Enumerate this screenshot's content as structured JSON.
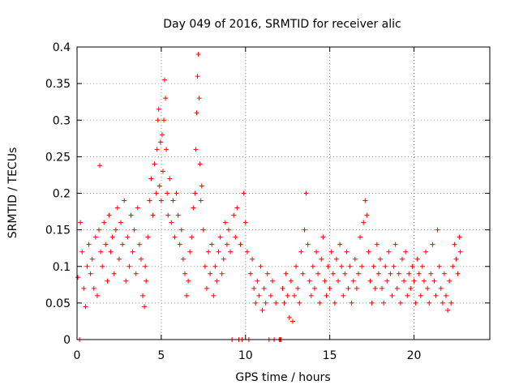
{
  "chart_data": {
    "type": "scatter",
    "title": "Day 049 of 2016, SRMTID for receiver alic",
    "xlabel": "GPS time / hours",
    "ylabel": "SRMTID / TECUs",
    "xlim": [
      0,
      24.5
    ],
    "ylim": [
      0,
      0.4
    ],
    "x_ticks": [
      0,
      5,
      10,
      15,
      20
    ],
    "x_tick_labels": [
      "0",
      "5",
      "10",
      "15",
      "20"
    ],
    "y_ticks": [
      0,
      0.05,
      0.1,
      0.15,
      0.2,
      0.25,
      0.3,
      0.35,
      0.4
    ],
    "y_tick_labels": [
      "0",
      "0.05",
      "0.1",
      "0.15",
      "0.2",
      "0.25",
      "0.3",
      "0.35",
      "0.4"
    ],
    "grid": true,
    "marker": "+",
    "marker_color": "#ff0000",
    "series": [
      {
        "name": "SRMTID",
        "points": [
          [
            0.05,
            0.085
          ],
          [
            0.15,
            0.0
          ],
          [
            0.2,
            0.16
          ],
          [
            0.3,
            0.12
          ],
          [
            0.4,
            0.07
          ],
          [
            0.5,
            0.045
          ],
          [
            0.6,
            0.1
          ],
          [
            0.7,
            0.13
          ],
          [
            0.8,
            0.09
          ],
          [
            0.9,
            0.11
          ],
          [
            1.0,
            0.07
          ],
          [
            1.1,
            0.14
          ],
          [
            1.2,
            0.06
          ],
          [
            1.3,
            0.15
          ],
          [
            1.35,
            0.238
          ],
          [
            1.4,
            0.12
          ],
          [
            1.5,
            0.1
          ],
          [
            1.6,
            0.16
          ],
          [
            1.7,
            0.13
          ],
          [
            1.8,
            0.08
          ],
          [
            1.9,
            0.17
          ],
          [
            2.0,
            0.12
          ],
          [
            2.1,
            0.14
          ],
          [
            2.2,
            0.09
          ],
          [
            2.3,
            0.15
          ],
          [
            2.4,
            0.18
          ],
          [
            2.5,
            0.11
          ],
          [
            2.6,
            0.16
          ],
          [
            2.7,
            0.13
          ],
          [
            2.8,
            0.19
          ],
          [
            2.9,
            0.08
          ],
          [
            3.0,
            0.14
          ],
          [
            3.1,
            0.1
          ],
          [
            3.2,
            0.17
          ],
          [
            3.3,
            0.12
          ],
          [
            3.4,
            0.15
          ],
          [
            3.5,
            0.09
          ],
          [
            3.6,
            0.18
          ],
          [
            3.7,
            0.13
          ],
          [
            3.8,
            0.11
          ],
          [
            3.9,
            0.06
          ],
          [
            4.0,
            0.045
          ],
          [
            4.05,
            0.1
          ],
          [
            4.1,
            0.08
          ],
          [
            4.2,
            0.14
          ],
          [
            4.3,
            0.19
          ],
          [
            4.4,
            0.22
          ],
          [
            4.5,
            0.17
          ],
          [
            4.6,
            0.24
          ],
          [
            4.7,
            0.2
          ],
          [
            4.75,
            0.26
          ],
          [
            4.8,
            0.3
          ],
          [
            4.85,
            0.315
          ],
          [
            4.9,
            0.21
          ],
          [
            4.95,
            0.27
          ],
          [
            5.0,
            0.19
          ],
          [
            5.05,
            0.28
          ],
          [
            5.1,
            0.23
          ],
          [
            5.15,
            0.3
          ],
          [
            5.2,
            0.355
          ],
          [
            5.25,
            0.33
          ],
          [
            5.3,
            0.26
          ],
          [
            5.35,
            0.2
          ],
          [
            5.4,
            0.17
          ],
          [
            5.5,
            0.22
          ],
          [
            5.6,
            0.16
          ],
          [
            5.7,
            0.19
          ],
          [
            5.8,
            0.14
          ],
          [
            5.9,
            0.2
          ],
          [
            6.0,
            0.17
          ],
          [
            6.1,
            0.13
          ],
          [
            6.2,
            0.15
          ],
          [
            6.3,
            0.11
          ],
          [
            6.4,
            0.09
          ],
          [
            6.5,
            0.06
          ],
          [
            6.6,
            0.08
          ],
          [
            6.7,
            0.12
          ],
          [
            6.8,
            0.14
          ],
          [
            6.9,
            0.18
          ],
          [
            7.0,
            0.2
          ],
          [
            7.05,
            0.26
          ],
          [
            7.1,
            0.31
          ],
          [
            7.15,
            0.36
          ],
          [
            7.2,
            0.39
          ],
          [
            7.25,
            0.33
          ],
          [
            7.3,
            0.24
          ],
          [
            7.35,
            0.19
          ],
          [
            7.4,
            0.21
          ],
          [
            7.5,
            0.15
          ],
          [
            7.6,
            0.1
          ],
          [
            7.7,
            0.07
          ],
          [
            7.8,
            0.12
          ],
          [
            7.9,
            0.09
          ],
          [
            8.0,
            0.13
          ],
          [
            8.1,
            0.06
          ],
          [
            8.2,
            0.1
          ],
          [
            8.3,
            0.08
          ],
          [
            8.4,
            0.12
          ],
          [
            8.5,
            0.14
          ],
          [
            8.6,
            0.09
          ],
          [
            8.7,
            0.11
          ],
          [
            8.8,
            0.16
          ],
          [
            8.9,
            0.13
          ],
          [
            9.0,
            0.15
          ],
          [
            9.1,
            0.12
          ],
          [
            9.2,
            0.0
          ],
          [
            9.3,
            0.17
          ],
          [
            9.4,
            0.14
          ],
          [
            9.5,
            0.18
          ],
          [
            9.6,
            0.0
          ],
          [
            9.7,
            0.13
          ],
          [
            9.8,
            0.0
          ],
          [
            9.9,
            0.2
          ],
          [
            10.0,
            0.16
          ],
          [
            10.1,
            0.12
          ],
          [
            10.2,
            0.0
          ],
          [
            10.3,
            0.09
          ],
          [
            10.4,
            0.11
          ],
          [
            10.5,
            0.07
          ],
          [
            10.6,
            0.05
          ],
          [
            10.7,
            0.08
          ],
          [
            10.8,
            0.06
          ],
          [
            10.9,
            0.1
          ],
          [
            11.0,
            0.04
          ],
          [
            11.1,
            0.07
          ],
          [
            11.2,
            0.05
          ],
          [
            11.3,
            0.09
          ],
          [
            11.4,
            0.0
          ],
          [
            11.5,
            0.06
          ],
          [
            11.6,
            0.08
          ],
          [
            11.7,
            0.0
          ],
          [
            11.8,
            0.05
          ],
          [
            12.0,
            0.0
          ],
          [
            12.05,
            0.0
          ],
          [
            12.1,
            0.0
          ],
          [
            12.2,
            0.07
          ],
          [
            12.3,
            0.05
          ],
          [
            12.4,
            0.09
          ],
          [
            12.5,
            0.06
          ],
          [
            12.6,
            0.03
          ],
          [
            12.7,
            0.08
          ],
          [
            12.8,
            0.025
          ],
          [
            12.9,
            0.06
          ],
          [
            13.0,
            0.1
          ],
          [
            13.1,
            0.07
          ],
          [
            13.2,
            0.05
          ],
          [
            13.3,
            0.12
          ],
          [
            13.4,
            0.09
          ],
          [
            13.5,
            0.15
          ],
          [
            13.6,
            0.2
          ],
          [
            13.7,
            0.13
          ],
          [
            13.8,
            0.08
          ],
          [
            13.9,
            0.06
          ],
          [
            14.0,
            0.1
          ],
          [
            14.1,
            0.07
          ],
          [
            14.2,
            0.12
          ],
          [
            14.3,
            0.09
          ],
          [
            14.4,
            0.05
          ],
          [
            14.5,
            0.11
          ],
          [
            14.6,
            0.14
          ],
          [
            14.7,
            0.08
          ],
          [
            14.8,
            0.06
          ],
          [
            14.9,
            0.1
          ],
          [
            15.0,
            0.07
          ],
          [
            15.1,
            0.12
          ],
          [
            15.2,
            0.09
          ],
          [
            15.3,
            0.05
          ],
          [
            15.4,
            0.11
          ],
          [
            15.5,
            0.08
          ],
          [
            15.6,
            0.13
          ],
          [
            15.7,
            0.1
          ],
          [
            15.8,
            0.06
          ],
          [
            15.9,
            0.09
          ],
          [
            16.0,
            0.12
          ],
          [
            16.1,
            0.07
          ],
          [
            16.2,
            0.1
          ],
          [
            16.3,
            0.05
          ],
          [
            16.4,
            0.08
          ],
          [
            16.5,
            0.11
          ],
          [
            16.6,
            0.07
          ],
          [
            16.7,
            0.09
          ],
          [
            16.8,
            0.14
          ],
          [
            16.9,
            0.1
          ],
          [
            17.0,
            0.16
          ],
          [
            17.1,
            0.19
          ],
          [
            17.2,
            0.17
          ],
          [
            17.3,
            0.12
          ],
          [
            17.4,
            0.08
          ],
          [
            17.5,
            0.05
          ],
          [
            17.6,
            0.1
          ],
          [
            17.7,
            0.07
          ],
          [
            17.8,
            0.13
          ],
          [
            17.9,
            0.09
          ],
          [
            18.0,
            0.11
          ],
          [
            18.1,
            0.07
          ],
          [
            18.2,
            0.05
          ],
          [
            18.3,
            0.1
          ],
          [
            18.4,
            0.08
          ],
          [
            18.5,
            0.12
          ],
          [
            18.6,
            0.09
          ],
          [
            18.7,
            0.06
          ],
          [
            18.8,
            0.1
          ],
          [
            18.9,
            0.13
          ],
          [
            19.0,
            0.07
          ],
          [
            19.1,
            0.09
          ],
          [
            19.2,
            0.05
          ],
          [
            19.3,
            0.11
          ],
          [
            19.4,
            0.08
          ],
          [
            19.5,
            0.12
          ],
          [
            19.6,
            0.06
          ],
          [
            19.7,
            0.09
          ],
          [
            19.8,
            0.07
          ],
          [
            19.9,
            0.1
          ],
          [
            20.0,
            0.08
          ],
          [
            20.1,
            0.05
          ],
          [
            20.2,
            0.11
          ],
          [
            20.3,
            0.09
          ],
          [
            20.4,
            0.06
          ],
          [
            20.5,
            0.1
          ],
          [
            20.6,
            0.08
          ],
          [
            20.7,
            0.12
          ],
          [
            20.8,
            0.07
          ],
          [
            20.9,
            0.05
          ],
          [
            21.0,
            0.09
          ],
          [
            21.1,
            0.13
          ],
          [
            21.2,
            0.08
          ],
          [
            21.3,
            0.06
          ],
          [
            21.4,
            0.15
          ],
          [
            21.5,
            0.1
          ],
          [
            21.6,
            0.07
          ],
          [
            21.7,
            0.05
          ],
          [
            21.8,
            0.09
          ],
          [
            21.9,
            0.06
          ],
          [
            22.0,
            0.04
          ],
          [
            22.1,
            0.08
          ],
          [
            22.2,
            0.05
          ],
          [
            22.3,
            0.1
          ],
          [
            22.4,
            0.13
          ],
          [
            22.5,
            0.11
          ],
          [
            22.6,
            0.09
          ],
          [
            22.7,
            0.14
          ],
          [
            22.75,
            0.12
          ]
        ]
      }
    ]
  }
}
